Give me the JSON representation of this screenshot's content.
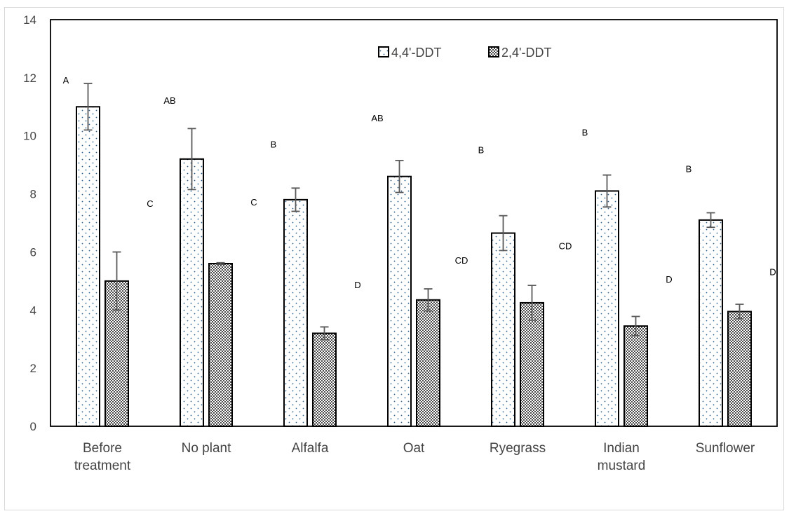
{
  "chart_data": {
    "type": "bar",
    "categories": [
      [
        "Before",
        "treatment"
      ],
      [
        "No plant"
      ],
      [
        "Alfalfa"
      ],
      [
        "Oat"
      ],
      [
        "Ryegrass"
      ],
      [
        "Indian",
        "mustard"
      ],
      [
        "Sunflower"
      ]
    ],
    "series": [
      {
        "name": "4,4'-DDT",
        "pattern": "sparse-dots",
        "values": [
          11.0,
          9.2,
          7.8,
          8.6,
          6.65,
          8.1,
          7.1
        ],
        "errors": [
          0.8,
          1.05,
          0.4,
          0.55,
          0.6,
          0.55,
          0.25
        ],
        "sig_labels": [
          "A",
          "AB",
          "B",
          "AB",
          "B",
          "B",
          "B"
        ],
        "sig_label_y": [
          11.8,
          11.1,
          9.6,
          10.5,
          9.4,
          10.0,
          8.75
        ]
      },
      {
        "name": "2,4'-DDT",
        "pattern": "dense-dots",
        "values": [
          5.0,
          5.6,
          3.2,
          4.35,
          4.25,
          3.45,
          3.95
        ],
        "errors": [
          1.0,
          0.03,
          0.22,
          0.38,
          0.6,
          0.33,
          0.25
        ],
        "sig_labels": [
          "C",
          "C",
          "D",
          "CD",
          "CD",
          "D",
          "D"
        ],
        "sig_label_y": [
          7.55,
          7.6,
          4.75,
          5.6,
          6.1,
          4.95,
          5.2
        ]
      }
    ],
    "ylim": [
      0,
      14
    ],
    "yticks": [
      0,
      2,
      4,
      6,
      8,
      10,
      12,
      14
    ],
    "xlabel": "",
    "ylabel": "",
    "title": "",
    "grid": false,
    "legend_position": "top-center",
    "colors": {
      "bar_stroke": "#000000",
      "dot": "#1f5a8a",
      "dense_dot": "#000000",
      "error_bar": "#595959",
      "axis_text": "#444444",
      "border": "#d9d9d9"
    }
  }
}
